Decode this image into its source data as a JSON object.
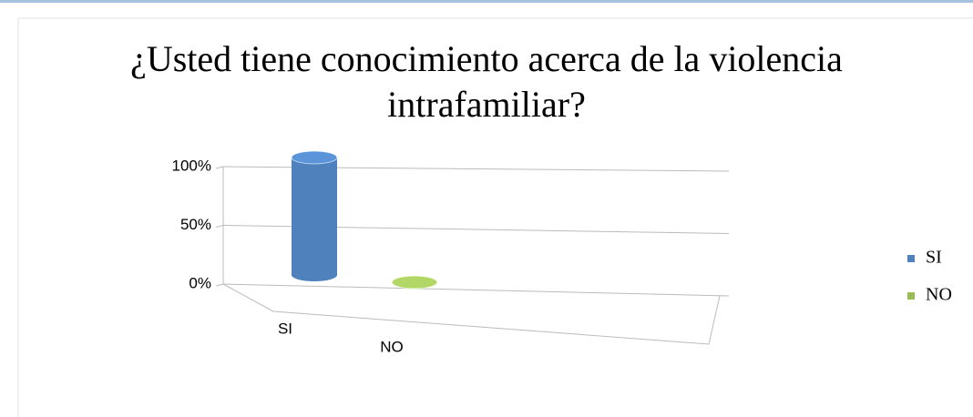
{
  "chart_data": {
    "type": "bar3d",
    "title": "¿Usted tiene conocimiento acerca de la violencia intrafamiliar?",
    "categories": [
      "SI",
      "NO"
    ],
    "series": [
      {
        "name": "SI",
        "color": "#4f81bd"
      },
      {
        "name": "NO",
        "color": "#9bbb59"
      }
    ],
    "values": [
      100,
      0
    ],
    "ylim": [
      0,
      100
    ],
    "yticks": [
      {
        "value": 0,
        "label": "0%"
      },
      {
        "value": 50,
        "label": "50%"
      },
      {
        "value": 100,
        "label": "100%"
      }
    ],
    "grid": true,
    "legend": "right"
  }
}
